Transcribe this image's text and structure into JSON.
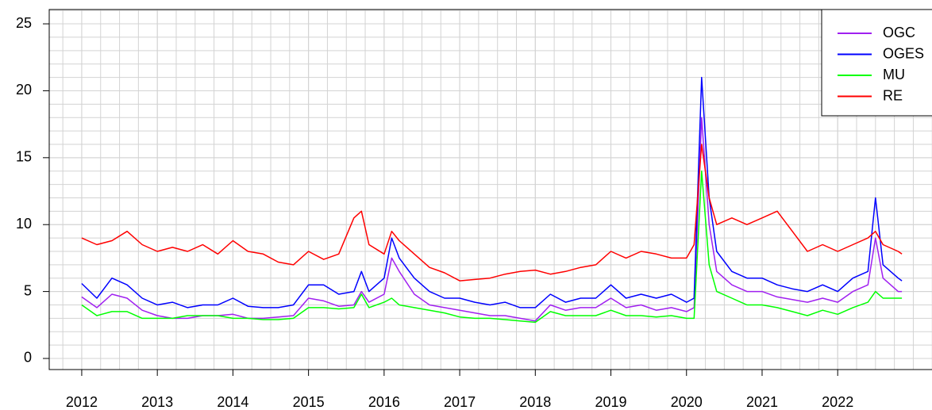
{
  "chart_data": {
    "type": "line",
    "x": [
      2012.0,
      2012.2,
      2012.4,
      2012.6,
      2012.8,
      2013.0,
      2013.2,
      2013.4,
      2013.6,
      2013.8,
      2014.0,
      2014.2,
      2014.4,
      2014.6,
      2014.8,
      2015.0,
      2015.2,
      2015.4,
      2015.6,
      2015.7,
      2015.8,
      2016.0,
      2016.1,
      2016.2,
      2016.4,
      2016.6,
      2016.8,
      2017.0,
      2017.2,
      2017.4,
      2017.6,
      2017.8,
      2018.0,
      2018.2,
      2018.4,
      2018.6,
      2018.8,
      2019.0,
      2019.2,
      2019.4,
      2019.6,
      2019.8,
      2020.0,
      2020.1,
      2020.2,
      2020.3,
      2020.4,
      2020.6,
      2020.8,
      2021.0,
      2021.2,
      2021.4,
      2021.6,
      2021.8,
      2022.0,
      2022.2,
      2022.4,
      2022.5,
      2022.6,
      2022.8,
      2022.85
    ],
    "series": [
      {
        "name": "OGC",
        "color": "#a020f0",
        "values": [
          4.6,
          3.8,
          4.8,
          4.5,
          3.6,
          3.2,
          3.0,
          3.0,
          3.2,
          3.2,
          3.3,
          3.0,
          3.0,
          3.1,
          3.2,
          4.5,
          4.3,
          3.9,
          4.0,
          5.0,
          4.2,
          4.8,
          7.5,
          6.5,
          4.8,
          4.0,
          3.8,
          3.6,
          3.4,
          3.2,
          3.2,
          3.0,
          2.8,
          4.0,
          3.6,
          3.8,
          3.8,
          4.5,
          3.8,
          4.0,
          3.6,
          3.8,
          3.5,
          3.8,
          18.0,
          10.0,
          6.5,
          5.5,
          5.0,
          5.0,
          4.6,
          4.4,
          4.2,
          4.5,
          4.2,
          5.0,
          5.5,
          9.0,
          6.0,
          5.0,
          5.0
        ]
      },
      {
        "name": "OGES",
        "color": "#0000ff",
        "values": [
          5.6,
          4.5,
          6.0,
          5.5,
          4.5,
          4.0,
          4.2,
          3.8,
          4.0,
          4.0,
          4.5,
          3.9,
          3.8,
          3.8,
          4.0,
          5.5,
          5.5,
          4.8,
          5.0,
          6.5,
          5.0,
          6.0,
          9.0,
          7.5,
          6.0,
          5.0,
          4.5,
          4.5,
          4.2,
          4.0,
          4.2,
          3.8,
          3.8,
          4.8,
          4.2,
          4.5,
          4.5,
          5.5,
          4.5,
          4.8,
          4.5,
          4.8,
          4.2,
          4.5,
          21.0,
          12.0,
          8.0,
          6.5,
          6.0,
          6.0,
          5.5,
          5.2,
          5.0,
          5.5,
          5.0,
          6.0,
          6.5,
          12.0,
          7.0,
          6.0,
          5.8
        ]
      },
      {
        "name": "MU",
        "color": "#00ff00",
        "values": [
          4.0,
          3.2,
          3.5,
          3.5,
          3.0,
          3.0,
          3.0,
          3.2,
          3.2,
          3.2,
          3.0,
          3.0,
          2.9,
          2.9,
          3.0,
          3.8,
          3.8,
          3.7,
          3.8,
          4.8,
          3.8,
          4.2,
          4.5,
          4.0,
          3.8,
          3.6,
          3.4,
          3.1,
          3.0,
          3.0,
          2.9,
          2.8,
          2.7,
          3.5,
          3.2,
          3.2,
          3.2,
          3.6,
          3.2,
          3.2,
          3.1,
          3.2,
          3.0,
          3.0,
          14.0,
          7.0,
          5.0,
          4.5,
          4.0,
          4.0,
          3.8,
          3.5,
          3.2,
          3.6,
          3.3,
          3.8,
          4.2,
          5.0,
          4.5,
          4.5,
          4.5
        ]
      },
      {
        "name": "RE",
        "color": "#ff0000",
        "values": [
          9.0,
          8.5,
          8.8,
          9.5,
          8.5,
          8.0,
          8.3,
          8.0,
          8.5,
          7.8,
          8.8,
          8.0,
          7.8,
          7.2,
          7.0,
          8.0,
          7.4,
          7.8,
          10.5,
          11.0,
          8.5,
          7.8,
          9.5,
          8.8,
          7.8,
          6.8,
          6.4,
          5.8,
          5.9,
          6.0,
          6.3,
          6.5,
          6.6,
          6.3,
          6.5,
          6.8,
          7.0,
          8.0,
          7.5,
          8.0,
          7.8,
          7.5,
          7.5,
          8.5,
          16.0,
          12.0,
          10.0,
          10.5,
          10.0,
          10.5,
          11.0,
          9.5,
          8.0,
          8.5,
          8.0,
          8.5,
          9.0,
          9.5,
          8.5,
          8.0,
          7.8
        ]
      }
    ],
    "xlim": [
      2011.57,
      2023.3
    ],
    "xticks": [
      2012,
      2013,
      2014,
      2015,
      2016,
      2017,
      2018,
      2019,
      2020,
      2021,
      2022
    ],
    "ylim": [
      -0.83,
      26.07
    ],
    "yticks": [
      0,
      5,
      10,
      15,
      20,
      25
    ],
    "grid": true,
    "legend": "topright"
  }
}
